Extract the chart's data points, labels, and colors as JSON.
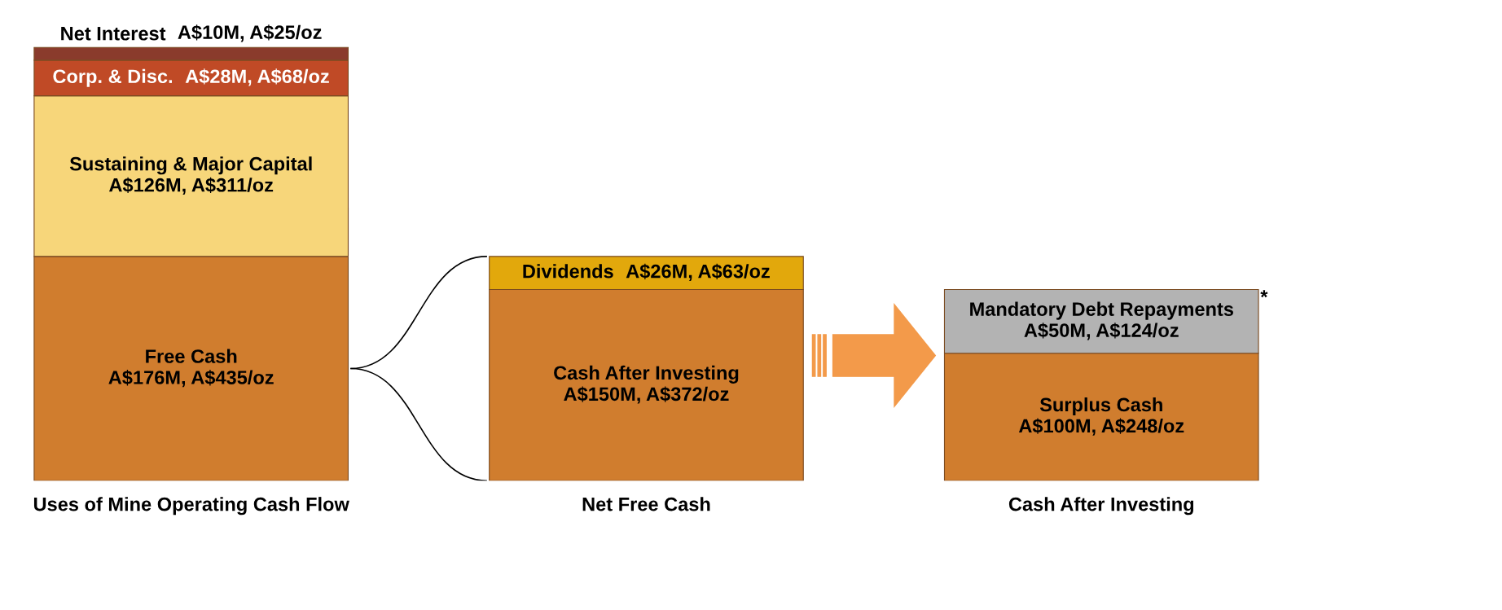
{
  "chart_data": {
    "type": "bar",
    "stacked": true,
    "categories": [
      "Uses of Mine Operating Cash Flow",
      "Net Free Cash",
      "Cash After Investing"
    ],
    "series": [
      {
        "name": "Free Cash",
        "color": "#d07d2e",
        "values": [
          176000000,
          null,
          null
        ],
        "value_labels": [
          "A$176M, A$435/oz",
          null,
          null
        ]
      },
      {
        "name": "Sustaining & Major Capital",
        "color": "#f7d67a",
        "values": [
          126000000,
          null,
          null
        ],
        "value_labels": [
          "A$126M, A$311/oz",
          null,
          null
        ]
      },
      {
        "name": "Corp. & Disc.",
        "color": "#c04a26",
        "values": [
          28000000,
          null,
          null
        ],
        "value_labels": [
          "A$28M, A$68/oz",
          null,
          null
        ]
      },
      {
        "name": "Net Interest",
        "color": "#8a3b2c",
        "values": [
          10000000,
          null,
          null
        ],
        "value_labels": [
          "A$10M, A$25/oz",
          null,
          null
        ]
      },
      {
        "name": "Cash After Investing",
        "color": "#d07d2e",
        "values": [
          null,
          150000000,
          null
        ],
        "value_labels": [
          null,
          "A$150M, A$372/oz",
          null
        ]
      },
      {
        "name": "Dividends",
        "color": "#e2a80c",
        "values": [
          null,
          26000000,
          null
        ],
        "value_labels": [
          null,
          "A$26M, A$63/oz",
          null
        ]
      },
      {
        "name": "Surplus Cash",
        "color": "#d07d2e",
        "values": [
          null,
          null,
          100000000
        ],
        "value_labels": [
          null,
          null,
          "A$100M, A$248/oz"
        ]
      },
      {
        "name": "Mandatory Debt Repayments",
        "color": "#b3b3b3",
        "values": [
          null,
          null,
          50000000
        ],
        "value_labels": [
          null,
          null,
          "A$50M, A$124/oz"
        ]
      }
    ],
    "annotations": [
      "*"
    ]
  }
}
